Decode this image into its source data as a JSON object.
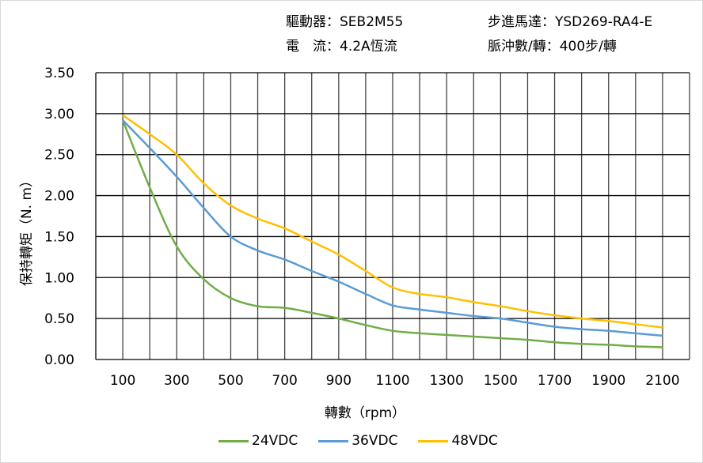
{
  "header": {
    "driver": "驅動器：SEB2M55",
    "motor": "步進馬達：YSD269-RA4-E",
    "current": "電　流：4.2A恆流",
    "pulses": "脈沖數/轉：400步/轉"
  },
  "chart_data": {
    "type": "line",
    "xlabel": "轉數（rpm）",
    "ylabel": "保持轉矩（N. m）",
    "xlim": [
      0,
      2200
    ],
    "ylim": [
      0,
      3.5
    ],
    "xticks": [
      100,
      300,
      500,
      700,
      900,
      1100,
      1300,
      1500,
      1700,
      1900,
      2100
    ],
    "yticks": [
      "0.00",
      "0.50",
      "1.00",
      "1.50",
      "2.00",
      "2.50",
      "3.00",
      "3.50"
    ],
    "grid": true,
    "legend": "bottom",
    "x": [
      100,
      200,
      300,
      400,
      500,
      600,
      700,
      800,
      900,
      1000,
      1100,
      1200,
      1300,
      1400,
      1500,
      1600,
      1700,
      1800,
      1900,
      2000,
      2100
    ],
    "series": [
      {
        "name": "24VDC",
        "color": "#70ad47",
        "values": [
          2.92,
          2.1,
          1.38,
          0.98,
          0.75,
          0.65,
          0.63,
          0.57,
          0.5,
          0.42,
          0.35,
          0.32,
          0.3,
          0.28,
          0.26,
          0.24,
          0.21,
          0.19,
          0.18,
          0.16,
          0.15
        ]
      },
      {
        "name": "36VDC",
        "color": "#5b9bd5",
        "values": [
          2.92,
          2.58,
          2.23,
          1.85,
          1.5,
          1.33,
          1.22,
          1.08,
          0.95,
          0.8,
          0.66,
          0.61,
          0.57,
          0.53,
          0.5,
          0.45,
          0.4,
          0.37,
          0.35,
          0.32,
          0.29
        ]
      },
      {
        "name": "48VDC",
        "color": "#ffc000",
        "values": [
          2.98,
          2.75,
          2.5,
          2.15,
          1.88,
          1.72,
          1.6,
          1.44,
          1.28,
          1.08,
          0.88,
          0.8,
          0.76,
          0.7,
          0.65,
          0.59,
          0.54,
          0.5,
          0.47,
          0.43,
          0.39
        ]
      }
    ]
  }
}
